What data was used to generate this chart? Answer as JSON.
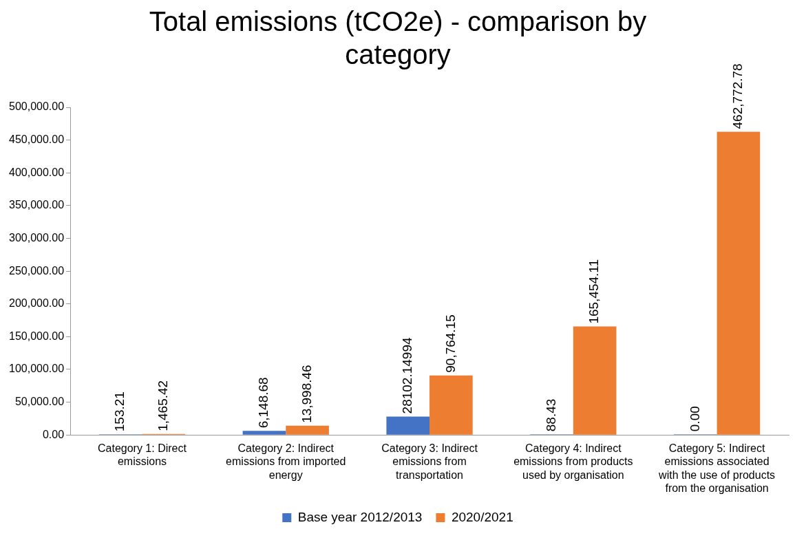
{
  "chart_data": {
    "type": "bar",
    "title": "Total emissions (tCO2e) - comparison by category",
    "categories": [
      "Category 1: Direct emissions",
      "Category 2: Indirect emissions from imported energy",
      "Category 3: Indirect emissions from transportation",
      "Category 4: Indirect emissions from products used by organisation",
      "Category 5: Indirect emissions associated with the use of products from the organisation"
    ],
    "series": [
      {
        "name": "Base year 2012/2013",
        "color": "#4472c4",
        "values": [
          153.21,
          6148.68,
          28102.14994,
          88.43,
          0
        ],
        "value_labels": [
          "153.21",
          "6,148.68",
          "28102.14994",
          "88.43",
          "0.00"
        ]
      },
      {
        "name": "2020/2021",
        "color": "#ed7d31",
        "values": [
          1465.42,
          13998.46,
          90764.15,
          165454.11,
          462772.78
        ],
        "value_labels": [
          "1,465.42",
          "13,998.46",
          "90,764.15",
          "165,454.11",
          "462,772.78"
        ]
      }
    ],
    "ylim": [
      0,
      500000
    ],
    "yticks": [
      {
        "value": 0,
        "label": "0.00"
      },
      {
        "value": 50000,
        "label": "50,000.00"
      },
      {
        "value": 100000,
        "label": "100,000.00"
      },
      {
        "value": 150000,
        "label": "150,000.00"
      },
      {
        "value": 200000,
        "label": "200,000.00"
      },
      {
        "value": 250000,
        "label": "250,000.00"
      },
      {
        "value": 300000,
        "label": "300,000.00"
      },
      {
        "value": 350000,
        "label": "350,000.00"
      },
      {
        "value": 400000,
        "label": "400,000.00"
      },
      {
        "value": 450000,
        "label": "450,000.00"
      },
      {
        "value": 500000,
        "label": "500,000.00"
      }
    ],
    "grid": false,
    "legend": "bottom"
  }
}
